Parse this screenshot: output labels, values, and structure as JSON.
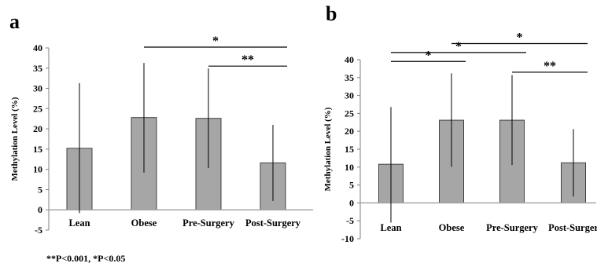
{
  "footnote": "**P<0.001, *P<0.05",
  "chart_data": [
    {
      "type": "bar",
      "panel": "a",
      "ylabel": "Methylation Level (%)",
      "ylim": [
        -5,
        40
      ],
      "yticks": [
        -5,
        0,
        5,
        10,
        15,
        20,
        25,
        30,
        35,
        40
      ],
      "categories": [
        "Lean",
        "Obese",
        "Pre-Surgery",
        "Post-Surgery"
      ],
      "values": [
        15.2,
        22.8,
        22.6,
        11.6
      ],
      "error_upper": [
        31.3,
        36.3,
        34.9,
        21.0
      ],
      "error_lower": [
        -0.8,
        9.2,
        10.3,
        2.2
      ],
      "bar_color": "#a6a6a6",
      "significance": [
        {
          "from": 1,
          "to": 3,
          "y": 40.2,
          "label": "*"
        },
        {
          "from": 2,
          "to": 3,
          "y": 35.5,
          "label": "**"
        }
      ]
    },
    {
      "type": "bar",
      "panel": "b",
      "ylabel": "Methylation Level (%)",
      "ylim": [
        -10,
        40
      ],
      "yticks": [
        -10,
        -5,
        0,
        5,
        10,
        15,
        20,
        25,
        30,
        35,
        40
      ],
      "categories": [
        "Lean",
        "Obese",
        "Pre-Surgery",
        "Post-Surger"
      ],
      "values": [
        10.8,
        23.1,
        23.1,
        11.2
      ],
      "error_upper": [
        26.8,
        36.2,
        35.7,
        20.6
      ],
      "error_lower": [
        -5.5,
        10.1,
        10.6,
        1.8
      ],
      "bar_color": "#a6a6a6",
      "significance": [
        {
          "from": 1,
          "to": 3,
          "y": 44.5,
          "label": "*"
        },
        {
          "from": 0,
          "to": 2,
          "y": 42.0,
          "label": "*"
        },
        {
          "from": 0,
          "to": 1,
          "y": 39.5,
          "label": "*"
        },
        {
          "from": 2,
          "to": 3,
          "y": 36.5,
          "label": "**"
        }
      ]
    }
  ]
}
